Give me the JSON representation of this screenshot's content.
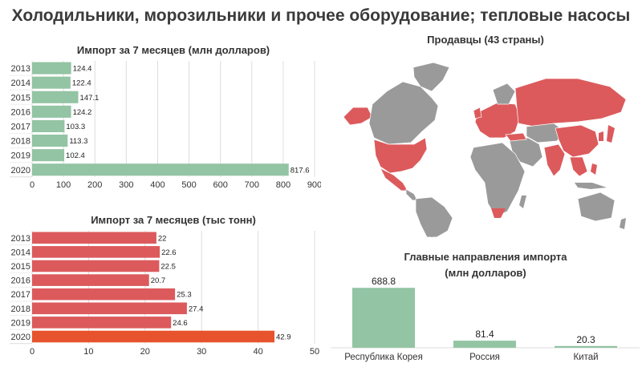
{
  "title": "Холодильники, морозильники и прочее оборудование; тепловые насосы",
  "colors": {
    "green": "#93c4a4",
    "red": "#dc5a5c",
    "orange": "#e7532c",
    "grey": "#9a9a9a"
  },
  "chart_data": [
    {
      "id": "import-value",
      "type": "bar",
      "orientation": "horizontal",
      "title": "Импорт за 7 месяцев (млн долларов)",
      "categories": [
        "2013",
        "2014",
        "2015",
        "2016",
        "2017",
        "2018",
        "2019",
        "2020"
      ],
      "values": [
        124.4,
        122.4,
        147.1,
        124.2,
        103.3,
        113.3,
        102.4,
        817.6
      ],
      "labels": [
        "124.4",
        "122.4",
        "147.1",
        "124.2",
        "103.3",
        "113.3",
        "102.4",
        "817.6"
      ],
      "xlim": [
        0,
        900
      ],
      "xticks": [
        "0",
        "100",
        "200",
        "300",
        "400",
        "500",
        "600",
        "700",
        "800",
        "900"
      ],
      "grid": true
    },
    {
      "id": "import-volume",
      "type": "bar",
      "orientation": "horizontal",
      "title": "Импорт за 7 месяцев (тыс тонн)",
      "categories": [
        "2013",
        "2014",
        "2015",
        "2016",
        "2017",
        "2018",
        "2019",
        "2020"
      ],
      "values": [
        22,
        22.6,
        22.5,
        20.7,
        25.3,
        27.4,
        24.6,
        42.9
      ],
      "labels": [
        "22",
        "22.6",
        "22.5",
        "20.7",
        "25.3",
        "27.4",
        "24.6",
        "42.9"
      ],
      "xlim": [
        0,
        50
      ],
      "xticks": [
        "0",
        "10",
        "20",
        "30",
        "40",
        "50"
      ],
      "grid": true
    },
    {
      "id": "sellers-map",
      "type": "map",
      "title": "Продавцы (43 страны)"
    },
    {
      "id": "top-directions",
      "type": "bar",
      "orientation": "vertical",
      "title": "Главные направления импорта",
      "subtitle": "(млн долларов)",
      "categories": [
        "Республика Корея",
        "Россия",
        "Китай"
      ],
      "values": [
        688.8,
        81.4,
        20.3
      ],
      "labels": [
        "688.8",
        "81.4",
        "20.3"
      ],
      "ylim": [
        0,
        700
      ]
    }
  ]
}
